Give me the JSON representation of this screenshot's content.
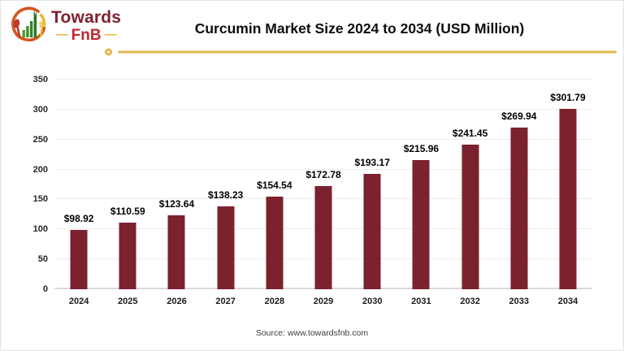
{
  "brand": {
    "name_top": "Towards",
    "name_bottom": "FnB",
    "dash": "—"
  },
  "header": {
    "title": "Curcumin Market Size 2024 to 2034 (USD Million)"
  },
  "footer": {
    "source": "Source: www.towardsfnb.com"
  },
  "colors": {
    "bar": "#7c212e",
    "gold": "#e3b94e",
    "brand_dark_red": "#7e2230",
    "brand_bright_red": "#c1272d",
    "gridline": "#ececec",
    "axis": "#d8d8d8"
  },
  "chart_data": {
    "type": "bar",
    "title": "Curcumin Market Size 2024 to 2034 (USD Million)",
    "categories": [
      "2024",
      "2025",
      "2026",
      "2027",
      "2028",
      "2029",
      "2030",
      "2031",
      "2032",
      "2033",
      "2034"
    ],
    "values": [
      98.92,
      110.59,
      123.64,
      138.23,
      154.54,
      172.78,
      193.17,
      215.96,
      241.45,
      269.94,
      301.79
    ],
    "bar_labels": [
      "$98.92",
      "$110.59",
      "$123.64",
      "$138.23",
      "$154.54",
      "$172.78",
      "$193.17",
      "$215.96",
      "$241.45",
      "$269.94",
      "$301.79"
    ],
    "xlabel": "",
    "ylabel": "",
    "ylim": [
      0,
      350
    ],
    "yticks": [
      0,
      50,
      100,
      150,
      200,
      250,
      300,
      350
    ],
    "grid": true,
    "legend": false,
    "bar_color": "#7c212e"
  }
}
